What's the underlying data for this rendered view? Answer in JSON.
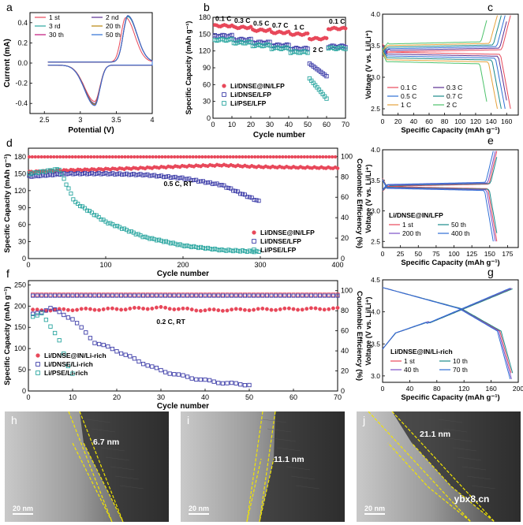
{
  "figure": {
    "watermark": "ybx8.cn",
    "panel_letters": [
      "a",
      "b",
      "c",
      "d",
      "e",
      "f",
      "g",
      "h",
      "i",
      "j"
    ]
  },
  "chart_data": [
    {
      "id": "a",
      "type": "line",
      "xlabel": "Potential (V)",
      "ylabel": "Current (mA)",
      "xlim": [
        2.3,
        4.0
      ],
      "ylim": [
        -0.5,
        0.5
      ],
      "xticks": [
        2.5,
        3.0,
        3.5,
        4.0
      ],
      "yticks": [
        -0.4,
        -0.2,
        0.0,
        0.2,
        0.4
      ],
      "legend": [
        "1 st",
        "2 nd",
        "3 rd",
        "20 th",
        "30 th",
        "50 th"
      ],
      "colors": [
        "#e8485a",
        "#5a2d91",
        "#2aa6a0",
        "#b8860b",
        "#c0147a",
        "#2f6fd6"
      ],
      "series": [
        {
          "name": "1 st",
          "oxidation_peak": [
            3.63,
            0.44
          ],
          "reduction_peak": [
            3.2,
            -0.36
          ]
        },
        {
          "name": "2 nd",
          "oxidation_peak": [
            3.66,
            0.45
          ],
          "reduction_peak": [
            3.2,
            -0.38
          ]
        },
        {
          "name": "3 rd",
          "oxidation_peak": [
            3.66,
            0.45
          ],
          "reduction_peak": [
            3.2,
            -0.39
          ]
        },
        {
          "name": "20 th",
          "oxidation_peak": [
            3.66,
            0.46
          ],
          "reduction_peak": [
            3.2,
            -0.39
          ]
        },
        {
          "name": "30 th",
          "oxidation_peak": [
            3.66,
            0.46
          ],
          "reduction_peak": [
            3.2,
            -0.4
          ]
        },
        {
          "name": "50 th",
          "oxidation_peak": [
            3.66,
            0.46
          ],
          "reduction_peak": [
            3.2,
            -0.4
          ]
        }
      ]
    },
    {
      "id": "b",
      "type": "scatter",
      "xlabel": "Cycle number",
      "ylabel": "Specific Capacity (mAh g⁻¹)",
      "xlim": [
        0,
        70
      ],
      "ylim": [
        0,
        180
      ],
      "xticks": [
        0,
        10,
        20,
        30,
        40,
        50,
        60,
        70
      ],
      "yticks": [
        0,
        30,
        60,
        90,
        120,
        150,
        180
      ],
      "rate_labels": [
        "0.1 C",
        "0.3 C",
        "0.5 C",
        "0.7 C",
        "1 C",
        "2 C",
        "0.1 C"
      ],
      "segments": [
        [
          1,
          10
        ],
        [
          11,
          20
        ],
        [
          21,
          30
        ],
        [
          31,
          40
        ],
        [
          41,
          50
        ],
        [
          51,
          60
        ],
        [
          61,
          70
        ]
      ],
      "series": [
        {
          "name": "Li/DNSE@IN/LFP",
          "color": "#e8485a",
          "marker": "circle-filled",
          "values": [
            165,
            162,
            157,
            153,
            150,
            142,
            160
          ]
        },
        {
          "name": "Li/DNSE/LFP",
          "color": "#3c3ca8",
          "marker": "square-open",
          "values": [
            147,
            140,
            135,
            130,
            124,
            85,
            128
          ]
        },
        {
          "name": "Li/PSE/LFP",
          "color": "#2aa6a0",
          "marker": "square-open",
          "values": [
            140,
            135,
            130,
            125,
            118,
            45,
            125
          ]
        }
      ]
    },
    {
      "id": "c",
      "type": "line",
      "xlabel": "Specific Capacity (mAh g⁻¹)",
      "ylabel": "Voltage (V vs. Li/Li⁺)",
      "xlim": [
        0,
        175
      ],
      "ylim": [
        2.4,
        4.0
      ],
      "xticks": [
        0,
        20,
        40,
        60,
        80,
        100,
        120,
        140,
        160
      ],
      "yticks": [
        2.5,
        3.0,
        3.5,
        4.0
      ],
      "series": [
        {
          "name": "0.1 C",
          "color": "#e8485a",
          "capacity": 165
        },
        {
          "name": "0.3 C",
          "color": "#5a2d91",
          "capacity": 162
        },
        {
          "name": "0.5 C",
          "color": "#2f6fd6",
          "capacity": 158
        },
        {
          "name": "0.7 C",
          "color": "#1a8a8a",
          "capacity": 153
        },
        {
          "name": "1 C",
          "color": "#e6a23c",
          "capacity": 148
        },
        {
          "name": "2 C",
          "color": "#4cc26b",
          "capacity": 136
        }
      ]
    },
    {
      "id": "d",
      "type": "scatter",
      "xlabel": "Cycle number",
      "ylabel": "Specific Capacity (mAh g⁻¹)",
      "y2label": "Coulombic Efficiency (%)",
      "xlim": [
        0,
        400
      ],
      "ylim": [
        0,
        195
      ],
      "y2lim": [
        0,
        108
      ],
      "xticks": [
        0,
        100,
        200,
        300,
        400
      ],
      "yticks": [
        0,
        30,
        60,
        90,
        120,
        150,
        180
      ],
      "y2ticks": [
        0,
        20,
        40,
        60,
        80,
        100
      ],
      "annotation": "0.5 C, RT",
      "series": [
        {
          "name": "Li/DNSE@IN/LFP",
          "color": "#e8485a",
          "marker": "circle-filled",
          "values": [
            [
              1,
              153
            ],
            [
              50,
              156
            ],
            [
              100,
              158
            ],
            [
              150,
              160
            ],
            [
              200,
              163
            ],
            [
              250,
              165
            ],
            [
              300,
              162
            ],
            [
              400,
              160
            ]
          ]
        },
        {
          "name": "Li/DNSE/LFP",
          "color": "#3c3ca8",
          "marker": "square-open",
          "values": [
            [
              1,
              145
            ],
            [
              50,
              150
            ],
            [
              100,
              150
            ],
            [
              150,
              148
            ],
            [
              200,
              142
            ],
            [
              250,
              130
            ],
            [
              300,
              100
            ]
          ]
        },
        {
          "name": "Li/PSE/LFP",
          "color": "#2aa6a0",
          "marker": "square-open",
          "values": [
            [
              1,
              150
            ],
            [
              40,
              158
            ],
            [
              60,
              100
            ],
            [
              100,
              65
            ],
            [
              150,
              38
            ],
            [
              200,
              23
            ],
            [
              250,
              15
            ],
            [
              300,
              12
            ]
          ]
        }
      ],
      "efficiency": {
        "value": 99.5,
        "unit": "%"
      }
    },
    {
      "id": "e",
      "type": "line",
      "xlabel": "Specific Capacity (mAh g⁻¹)",
      "ylabel": "Voltage (V vs. Li/Li⁺)",
      "xlim": [
        0,
        190
      ],
      "ylim": [
        2.4,
        4.0
      ],
      "xticks": [
        0,
        25,
        50,
        75,
        100,
        125,
        150,
        175
      ],
      "yticks": [
        2.5,
        3.0,
        3.5,
        4.0
      ],
      "title": "Li/DNSE@IN/LFP",
      "series": [
        {
          "name": "1 st",
          "color": "#e8485a",
          "capacity": 160
        },
        {
          "name": "50 th",
          "color": "#1a8a8a",
          "capacity": 162
        },
        {
          "name": "200 th",
          "color": "#7b4fc8",
          "capacity": 158
        },
        {
          "name": "400 th",
          "color": "#2f6fd6",
          "capacity": 155
        }
      ]
    },
    {
      "id": "f",
      "type": "scatter",
      "xlabel": "Cycle number",
      "ylabel": "Specific Capacity (mAh g⁻¹)",
      "y2label": "Coulombic Efficiency (%)",
      "xlim": [
        0,
        70
      ],
      "ylim": [
        0,
        260
      ],
      "y2lim": [
        0,
        110
      ],
      "xticks": [
        0,
        10,
        20,
        30,
        40,
        50,
        60,
        70
      ],
      "yticks": [
        0,
        50,
        100,
        150,
        200,
        250
      ],
      "y2ticks": [
        0,
        20,
        40,
        60,
        80,
        100
      ],
      "annotation": "0.2 C, RT",
      "series": [
        {
          "name": "Li/DNSE@IN/Li-rich",
          "color": "#e8485a",
          "marker": "circle-filled",
          "values": [
            [
              1,
              190
            ],
            [
              10,
              192
            ],
            [
              20,
              193
            ],
            [
              30,
              196
            ],
            [
              40,
              190
            ],
            [
              50,
              192
            ],
            [
              60,
              193
            ],
            [
              70,
              194
            ]
          ]
        },
        {
          "name": "Li/DNSE/Li-rich",
          "color": "#3c3ca8",
          "marker": "square-open",
          "values": [
            [
              1,
              180
            ],
            [
              5,
              195
            ],
            [
              10,
              170
            ],
            [
              15,
              115
            ],
            [
              20,
              95
            ],
            [
              25,
              70
            ],
            [
              30,
              48
            ],
            [
              35,
              35
            ],
            [
              40,
              25
            ],
            [
              45,
              18
            ],
            [
              50,
              15
            ]
          ]
        },
        {
          "name": "Li/PSE/Li-rich",
          "color": "#2aa6a0",
          "marker": "square-open",
          "values": [
            [
              1,
              175
            ],
            [
              3,
              185
            ],
            [
              5,
              150
            ],
            [
              7,
              120
            ],
            [
              8,
              90
            ],
            [
              9,
              60
            ],
            [
              10,
              40
            ]
          ]
        }
      ],
      "efficiency": {
        "DNSE@IN": 97,
        "DNSE": 95
      }
    },
    {
      "id": "g",
      "type": "line",
      "xlabel": "Specific Capacity (mAh g⁻¹)",
      "ylabel": "Voltage (V vs. Li/Li⁺)",
      "xlim": [
        0,
        200
      ],
      "ylim": [
        2.9,
        4.5
      ],
      "xticks": [
        0,
        40,
        80,
        120,
        160,
        200
      ],
      "yticks": [
        3.0,
        3.5,
        4.0,
        4.5
      ],
      "title": "Li/DNSE@IN/Li-rich",
      "series": [
        {
          "name": "1 st",
          "color": "#e8485a",
          "capacity": 192
        },
        {
          "name": "10 th",
          "color": "#1a8a8a",
          "capacity": 194
        },
        {
          "name": "40 th",
          "color": "#7b4fc8",
          "capacity": 190
        },
        {
          "name": "70 th",
          "color": "#2f6fd6",
          "capacity": 188
        }
      ]
    },
    {
      "id": "tem",
      "type": "image",
      "panels": [
        {
          "letter": "h",
          "thickness": "6.7 nm",
          "scalebar": "20 nm"
        },
        {
          "letter": "i",
          "thickness": "11.1 nm",
          "scalebar": "20 nm"
        },
        {
          "letter": "j",
          "thickness": "21.1 nm",
          "scalebar": "20 nm"
        }
      ]
    }
  ]
}
